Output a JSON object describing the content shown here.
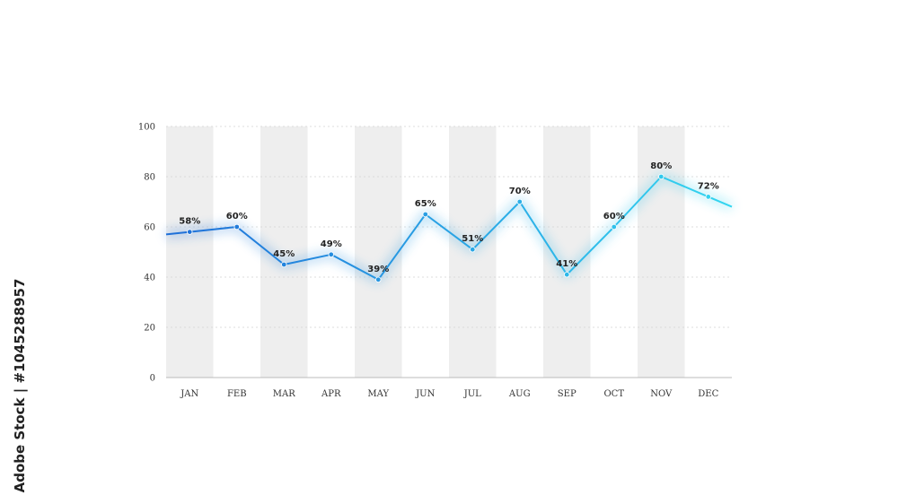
{
  "chart_data": {
    "type": "line",
    "title": "",
    "xlabel": "",
    "ylabel": "",
    "categories": [
      "JAN",
      "FEB",
      "MAR",
      "APR",
      "MAY",
      "JUN",
      "JUL",
      "AUG",
      "SEP",
      "OCT",
      "NOV",
      "DEC"
    ],
    "series": [
      {
        "values": [
          58,
          60,
          45,
          49,
          39,
          65,
          51,
          70,
          41,
          60,
          80,
          72
        ]
      }
    ],
    "data_labels": [
      "58%",
      "60%",
      "45%",
      "49%",
      "39%",
      "65%",
      "51%",
      "70%",
      "41%",
      "60%",
      "80%",
      "72%"
    ],
    "ylim": [
      0,
      100
    ],
    "yticks": [
      0,
      20,
      40,
      60,
      80,
      100
    ],
    "grid": true,
    "legend": "none",
    "colors": {
      "line_start": "#1f6fd8",
      "line_end": "#33d6f0",
      "band": "#eeeeee",
      "grid": "#d4d4d4",
      "axis": "#bbbbbb"
    }
  },
  "watermark": {
    "side_text": "Adobe Stock | #1045288957"
  }
}
